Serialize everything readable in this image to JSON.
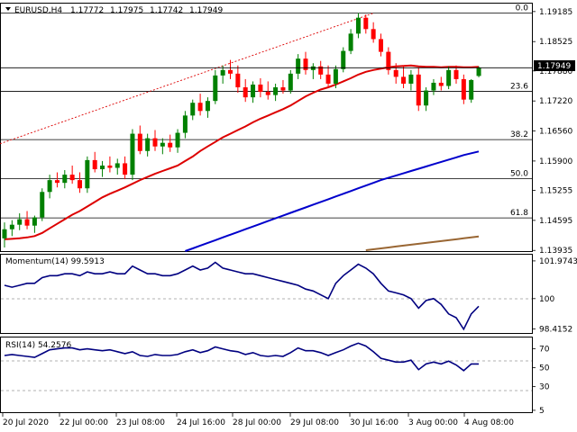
{
  "header": {
    "symbol": "EURUSD,H4",
    "open": "1.17772",
    "high": "1.17975",
    "low": "1.17742",
    "close": "1.17949"
  },
  "price_axis": {
    "ticks": [
      "1.19185",
      "1.18525",
      "1.17880",
      "1.17220",
      "1.16560",
      "1.15900",
      "1.15255",
      "1.14595",
      "1.13935"
    ],
    "current_price": "1.17949",
    "colors": {
      "badge": "#000000"
    }
  },
  "fib_levels": [
    {
      "label": "0.0",
      "price": 1.1915
    },
    {
      "label": "23.6",
      "price": 1.1743
    },
    {
      "label": "38.2",
      "price": 1.1637
    },
    {
      "label": "50.0",
      "price": 1.1551
    },
    {
      "label": "61.8",
      "price": 1.1465
    }
  ],
  "momentum": {
    "label": "Momentum(14) 99.5913",
    "ticks": [
      "101.9743",
      "100",
      "98.4152"
    ],
    "color": "#000080"
  },
  "rsi": {
    "label": "RSI(14) 54.2576",
    "ticks": [
      "70",
      "50",
      "30",
      "5"
    ],
    "color": "#000080"
  },
  "time_axis": {
    "labels": [
      "20 Jul 2020",
      "22 Jul 00:00",
      "23 Jul 08:00",
      "24 Jul 16:00",
      "28 Jul 00:00",
      "29 Jul 08:00",
      "30 Jul 16:00",
      "3 Aug 00:00",
      "4 Aug 08:00"
    ]
  },
  "chart_data": {
    "type": "candlestick",
    "ylim": [
      1.1392,
      1.1936
    ],
    "colors": {
      "up": "#008000",
      "down": "#ff0000",
      "sma20": "#dd0000",
      "sma100": "#0000cc",
      "sma200": "#996633",
      "trendline": "#dd0000"
    },
    "candles": [
      [
        1.142,
        1.1455,
        1.14,
        1.144
      ],
      [
        1.144,
        1.146,
        1.1425,
        1.145
      ],
      [
        1.145,
        1.1475,
        1.1438,
        1.1462
      ],
      [
        1.1462,
        1.148,
        1.144,
        1.1448
      ],
      [
        1.1448,
        1.147,
        1.1432,
        1.1466
      ],
      [
        1.1466,
        1.153,
        1.1458,
        1.1522
      ],
      [
        1.1522,
        1.156,
        1.1508,
        1.1548
      ],
      [
        1.1548,
        1.1565,
        1.1532,
        1.1542
      ],
      [
        1.1542,
        1.157,
        1.153,
        1.156
      ],
      [
        1.156,
        1.158,
        1.154,
        1.1548
      ],
      [
        1.1548,
        1.1565,
        1.152,
        1.153
      ],
      [
        1.153,
        1.16,
        1.152,
        1.1592
      ],
      [
        1.1592,
        1.161,
        1.1565,
        1.1572
      ],
      [
        1.1572,
        1.159,
        1.1555,
        1.158
      ],
      [
        1.158,
        1.16,
        1.1565,
        1.1575
      ],
      [
        1.1575,
        1.1595,
        1.156,
        1.1585
      ],
      [
        1.1585,
        1.16,
        1.155,
        1.156
      ],
      [
        1.156,
        1.166,
        1.1548,
        1.165
      ],
      [
        1.165,
        1.1668,
        1.1605,
        1.1612
      ],
      [
        1.1612,
        1.165,
        1.16,
        1.164
      ],
      [
        1.164,
        1.1658,
        1.1612,
        1.1622
      ],
      [
        1.1622,
        1.164,
        1.1605,
        1.163
      ],
      [
        1.163,
        1.1648,
        1.161,
        1.162
      ],
      [
        1.162,
        1.166,
        1.1608,
        1.1652
      ],
      [
        1.1652,
        1.17,
        1.164,
        1.169
      ],
      [
        1.169,
        1.1725,
        1.168,
        1.1718
      ],
      [
        1.1718,
        1.1738,
        1.169,
        1.17
      ],
      [
        1.17,
        1.173,
        1.1685,
        1.1722
      ],
      [
        1.1722,
        1.179,
        1.1715,
        1.1778
      ],
      [
        1.1778,
        1.18,
        1.176,
        1.179
      ],
      [
        1.179,
        1.1812,
        1.177,
        1.1782
      ],
      [
        1.1782,
        1.18,
        1.174,
        1.1752
      ],
      [
        1.1752,
        1.177,
        1.172,
        1.173
      ],
      [
        1.173,
        1.1765,
        1.1718,
        1.1758
      ],
      [
        1.1758,
        1.1772,
        1.173,
        1.1742
      ],
      [
        1.1742,
        1.1765,
        1.1725,
        1.1735
      ],
      [
        1.1735,
        1.176,
        1.1722,
        1.1752
      ],
      [
        1.1752,
        1.1768,
        1.1738,
        1.1745
      ],
      [
        1.1745,
        1.179,
        1.1738,
        1.1782
      ],
      [
        1.1782,
        1.1825,
        1.177,
        1.1815
      ],
      [
        1.1815,
        1.183,
        1.178,
        1.179
      ],
      [
        1.179,
        1.1805,
        1.177,
        1.1798
      ],
      [
        1.1798,
        1.181,
        1.177,
        1.178
      ],
      [
        1.178,
        1.18,
        1.1752,
        1.176
      ],
      [
        1.176,
        1.18,
        1.175,
        1.1792
      ],
      [
        1.1792,
        1.184,
        1.1785,
        1.1832
      ],
      [
        1.1832,
        1.188,
        1.1825,
        1.187
      ],
      [
        1.187,
        1.1915,
        1.186,
        1.1905
      ],
      [
        1.1905,
        1.1912,
        1.187,
        1.188
      ],
      [
        1.188,
        1.1895,
        1.185,
        1.1858
      ],
      [
        1.1858,
        1.187,
        1.182,
        1.183
      ],
      [
        1.183,
        1.184,
        1.178,
        1.179
      ],
      [
        1.179,
        1.1805,
        1.176,
        1.1775
      ],
      [
        1.1775,
        1.18,
        1.175,
        1.176
      ],
      [
        1.176,
        1.179,
        1.1745,
        1.178
      ],
      [
        1.178,
        1.1795,
        1.17,
        1.1712
      ],
      [
        1.1712,
        1.1752,
        1.17,
        1.1745
      ],
      [
        1.1745,
        1.177,
        1.1735,
        1.1762
      ],
      [
        1.1762,
        1.1775,
        1.1745,
        1.1755
      ],
      [
        1.1755,
        1.1798,
        1.1748,
        1.179
      ],
      [
        1.179,
        1.18,
        1.176,
        1.177
      ],
      [
        1.177,
        1.178,
        1.1715,
        1.1725
      ],
      [
        1.1725,
        1.177,
        1.1718,
        1.1768
      ],
      [
        1.1777,
        1.1798,
        1.1774,
        1.1795
      ]
    ],
    "sma20": [
      1.1418,
      1.1419,
      1.142,
      1.1422,
      1.1425,
      1.1432,
      1.1442,
      1.1452,
      1.1462,
      1.1472,
      1.148,
      1.149,
      1.15,
      1.151,
      1.1518,
      1.1525,
      1.1532,
      1.154,
      1.1548,
      1.1555,
      1.1562,
      1.1568,
      1.1574,
      1.158,
      1.159,
      1.16,
      1.1612,
      1.1622,
      1.1632,
      1.1642,
      1.165,
      1.1658,
      1.1666,
      1.1675,
      1.1683,
      1.169,
      1.1697,
      1.1704,
      1.1712,
      1.1722,
      1.1732,
      1.174,
      1.1747,
      1.1752,
      1.1758,
      1.1765,
      1.1772,
      1.178,
      1.1786,
      1.179,
      1.1793,
      1.1796,
      1.1798,
      1.1799,
      1.18,
      1.1798,
      1.1797,
      1.1797,
      1.1796,
      1.1797,
      1.1797,
      1.1796,
      1.1796,
      1.1797
    ],
    "sma100": [
      null,
      null,
      null,
      null,
      null,
      null,
      null,
      null,
      null,
      null,
      null,
      null,
      null,
      null,
      null,
      null,
      null,
      null,
      null,
      null,
      null,
      null,
      null,
      null,
      1.1392,
      1.1398,
      1.1404,
      1.141,
      1.1416,
      1.1422,
      1.1428,
      1.1434,
      1.144,
      1.1446,
      1.1452,
      1.1458,
      1.1464,
      1.147,
      1.1476,
      1.1482,
      1.1488,
      1.1494,
      1.15,
      1.1506,
      1.1512,
      1.1518,
      1.1524,
      1.153,
      1.1536,
      1.1542,
      1.1548,
      1.1553,
      1.1558,
      1.1563,
      1.1568,
      1.1573,
      1.1578,
      1.1583,
      1.1588,
      1.1593,
      1.1598,
      1.1603,
      1.1607,
      1.1611
    ],
    "sma200": [
      null,
      null,
      null,
      null,
      null,
      null,
      null,
      null,
      null,
      null,
      null,
      null,
      null,
      null,
      null,
      null,
      null,
      null,
      null,
      null,
      null,
      null,
      null,
      null,
      null,
      null,
      null,
      null,
      null,
      null,
      null,
      null,
      null,
      null,
      null,
      null,
      null,
      null,
      null,
      null,
      null,
      null,
      null,
      null,
      null,
      null,
      null,
      null,
      1.1394,
      1.1396,
      1.1398,
      1.14,
      1.1402,
      1.1404,
      1.1406,
      1.1408,
      1.141,
      1.1412,
      1.1414,
      1.1416,
      1.1418,
      1.142,
      1.1422,
      1.1424
    ],
    "trendline": {
      "from": [
        0,
        1.1628
      ],
      "to": [
        49,
        1.1915
      ]
    },
    "momentum_values": [
      100.7,
      100.6,
      100.7,
      100.8,
      100.8,
      101.1,
      101.2,
      101.2,
      101.3,
      101.3,
      101.2,
      101.4,
      101.3,
      101.3,
      101.4,
      101.3,
      101.3,
      101.7,
      101.5,
      101.3,
      101.3,
      101.2,
      101.2,
      101.3,
      101.5,
      101.7,
      101.5,
      101.6,
      101.9,
      101.6,
      101.5,
      101.4,
      101.3,
      101.3,
      101.2,
      101.1,
      101.0,
      100.9,
      100.8,
      100.7,
      100.5,
      100.4,
      100.2,
      100.0,
      100.8,
      101.2,
      101.5,
      101.8,
      101.6,
      101.3,
      100.8,
      100.4,
      100.3,
      100.2,
      100.0,
      99.5,
      99.9,
      100.0,
      99.7,
      99.2,
      99.0,
      98.4,
      99.2,
      99.6
    ],
    "momentum_ylim": [
      98.2,
      102.3
    ],
    "rsi_values": [
      63,
      64,
      63,
      62,
      61,
      65,
      69,
      70,
      71,
      71,
      69,
      70,
      69,
      68,
      69,
      67,
      65,
      67,
      63,
      62,
      64,
      63,
      63,
      64,
      67,
      69,
      66,
      68,
      72,
      70,
      68,
      67,
      64,
      66,
      63,
      62,
      63,
      62,
      66,
      71,
      68,
      68,
      66,
      63,
      66,
      69,
      73,
      76,
      73,
      67,
      60,
      58,
      56,
      56,
      58,
      48,
      54,
      56,
      54,
      57,
      53,
      47,
      54,
      54
    ],
    "rsi_ylim": [
      3,
      82
    ]
  }
}
